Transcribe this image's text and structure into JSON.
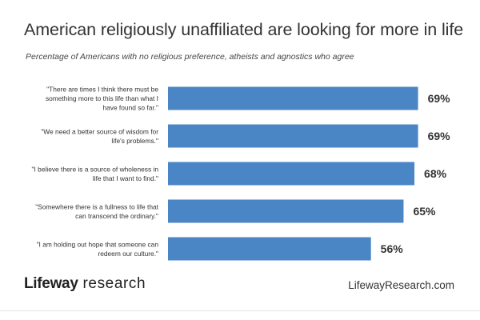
{
  "chart_data": {
    "type": "bar",
    "orientation": "horizontal",
    "title": "American religiously unaffiliated are looking for more in life",
    "subtitle": "Percentage of Americans with no religious preference, atheists and agnostics who agree",
    "categories": [
      [
        "\"There are times I think there must be",
        "something more to this life than what I",
        "have found so far.\""
      ],
      [
        "\"We need a better source of wisdom for",
        "life's problems.\""
      ],
      [
        "\"I believe there is a source of wholeness in",
        "life that I want to find.\""
      ],
      [
        "\"Somewhere there is a fullness to life that",
        "can transcend the ordinary.\""
      ],
      [
        "\"I am holding out hope that someone can",
        "redeem our culture.\""
      ]
    ],
    "values": [
      69,
      69,
      68,
      65,
      56
    ],
    "value_labels": [
      "69%",
      "69%",
      "68%",
      "65%",
      "56%"
    ],
    "xlim": [
      0,
      100
    ],
    "grid": false,
    "bar_color": "#4a86c5"
  },
  "footer": {
    "brand": "Lifeway",
    "brand_suffix": " research",
    "url": "LifewayResearch.com"
  }
}
